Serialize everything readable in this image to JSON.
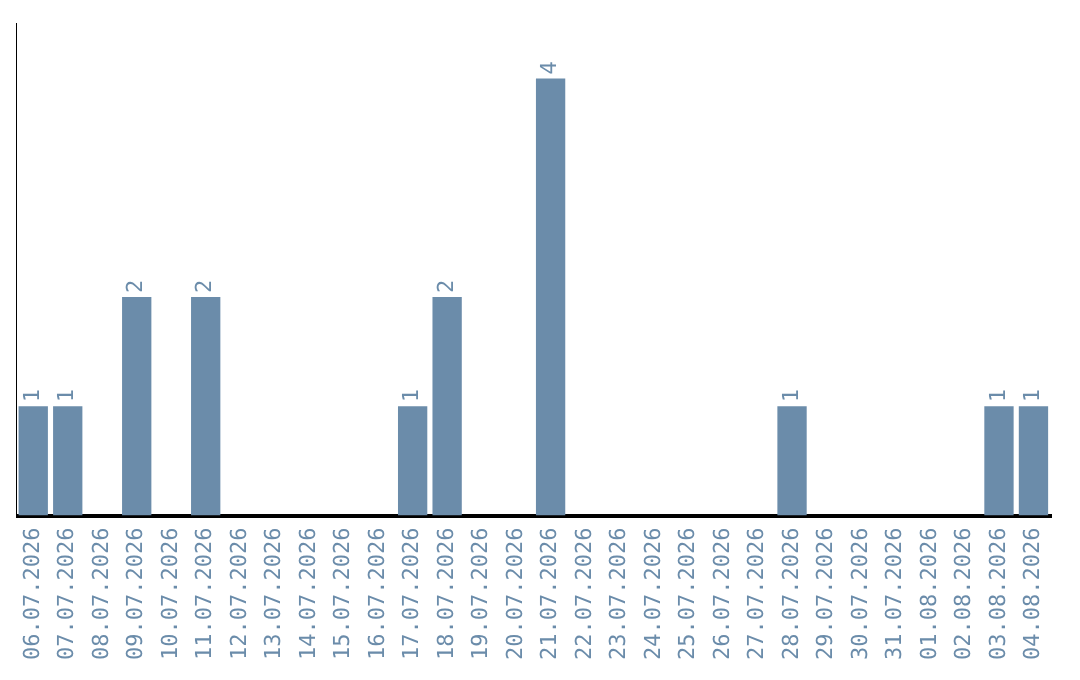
{
  "chart_data": {
    "type": "bar",
    "categories": [
      "06.07.2026",
      "07.07.2026",
      "08.07.2026",
      "09.07.2026",
      "10.07.2026",
      "11.07.2026",
      "12.07.2026",
      "13.07.2026",
      "14.07.2026",
      "15.07.2026",
      "16.07.2026",
      "17.07.2026",
      "18.07.2026",
      "19.07.2026",
      "20.07.2026",
      "21.07.2026",
      "22.07.2026",
      "23.07.2026",
      "24.07.2026",
      "25.07.2026",
      "26.07.2026",
      "27.07.2026",
      "28.07.2026",
      "29.07.2026",
      "30.07.2026",
      "31.07.2026",
      "01.08.2026",
      "02.08.2026",
      "03.08.2026",
      "04.08.2026"
    ],
    "values": [
      1,
      1,
      0,
      2,
      0,
      2,
      0,
      0,
      0,
      0,
      0,
      1,
      2,
      0,
      0,
      4,
      0,
      0,
      0,
      0,
      0,
      0,
      1,
      0,
      0,
      0,
      0,
      0,
      1,
      1
    ],
    "value_labels": [
      "1",
      "1",
      null,
      "2",
      null,
      "2",
      null,
      null,
      null,
      null,
      null,
      "1",
      "2",
      null,
      null,
      "4",
      null,
      null,
      null,
      null,
      null,
      null,
      "1",
      null,
      null,
      null,
      null,
      null,
      "1",
      "1"
    ],
    "color": "#6b8caa",
    "grid": false,
    "legend": false
  }
}
